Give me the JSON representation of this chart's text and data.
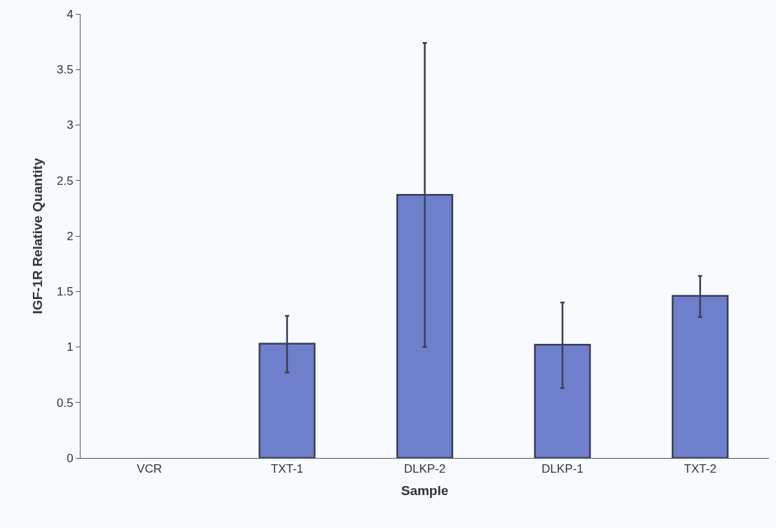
{
  "chart_data": {
    "type": "bar",
    "xlabel": "Sample",
    "ylabel": "IGF-1R Relative Quantity",
    "categories": [
      "VCR",
      "TXT-1",
      "DLKP-2",
      "DLKP-1",
      "TXT-2"
    ],
    "values": [
      null,
      1.03,
      2.37,
      1.02,
      1.46
    ],
    "errors": [
      null,
      [
        0.77,
        1.28
      ],
      [
        1.0,
        3.74
      ],
      [
        0.63,
        1.4
      ],
      [
        1.27,
        1.64
      ]
    ],
    "color": "#6e7fcc",
    "ylim": [
      0,
      4
    ],
    "yticks": [
      0,
      0.5,
      1,
      1.5,
      2,
      2.5,
      3,
      3.5,
      4
    ],
    "grid": false,
    "legend": false
  }
}
